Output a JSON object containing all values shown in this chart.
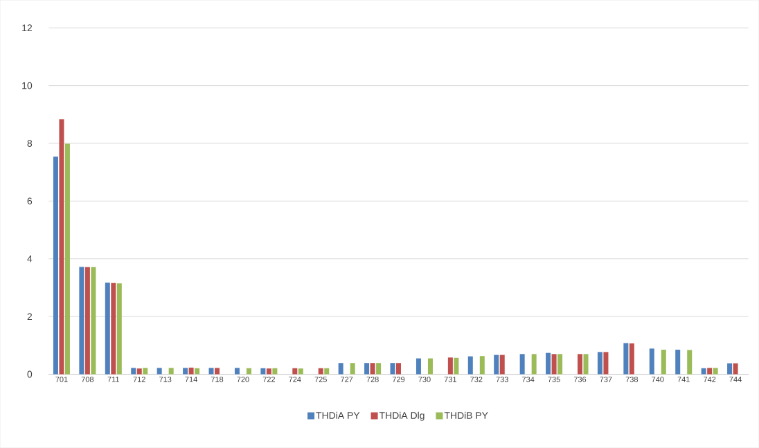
{
  "chart_data": {
    "type": "bar",
    "categories": [
      "701",
      "708",
      "711",
      "712",
      "713",
      "714",
      "718",
      "720",
      "722",
      "724",
      "725",
      "727",
      "728",
      "729",
      "730",
      "731",
      "732",
      "733",
      "734",
      "735",
      "736",
      "737",
      "738",
      "740",
      "741",
      "742",
      "744"
    ],
    "series": [
      {
        "name": "THDiA PY",
        "color": "#4f81bd",
        "values": [
          7.54,
          3.72,
          3.17,
          0.22,
          0.22,
          0.22,
          0.22,
          0.22,
          0.21,
          null,
          null,
          0.39,
          0.39,
          0.39,
          0.55,
          null,
          0.62,
          0.67,
          0.7,
          0.74,
          null,
          0.77,
          1.08,
          0.89,
          0.85,
          0.21,
          0.38
        ]
      },
      {
        "name": "THDiA Dlg",
        "color": "#c0504d",
        "values": [
          8.83,
          3.71,
          3.16,
          0.2,
          null,
          0.23,
          0.22,
          null,
          0.2,
          0.21,
          0.21,
          null,
          0.39,
          0.39,
          null,
          0.58,
          null,
          0.67,
          null,
          0.7,
          0.7,
          0.77,
          1.07,
          null,
          null,
          0.22,
          0.38
        ]
      },
      {
        "name": "THDiB PY",
        "color": "#9bbb59",
        "values": [
          7.99,
          3.71,
          3.15,
          0.22,
          0.22,
          0.21,
          null,
          0.21,
          0.21,
          0.2,
          0.21,
          0.39,
          0.39,
          null,
          0.55,
          0.57,
          0.63,
          null,
          0.7,
          0.7,
          0.7,
          null,
          null,
          0.85,
          0.84,
          0.22,
          null
        ]
      }
    ],
    "ylim": [
      0,
      12
    ],
    "yticks": [
      0,
      2,
      4,
      6,
      8,
      10,
      12
    ],
    "grid": "y",
    "legend": "bottom"
  }
}
